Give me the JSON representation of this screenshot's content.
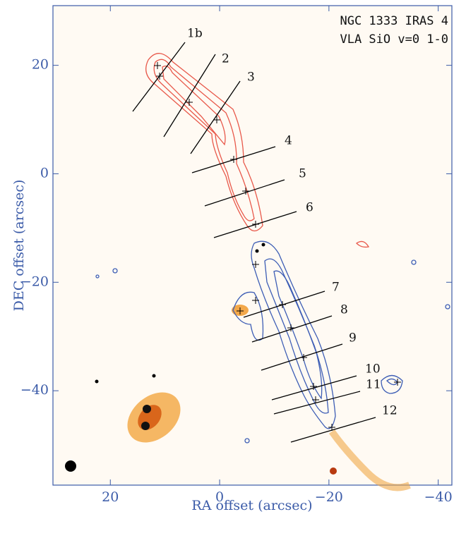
{
  "chart_data": {
    "type": "image",
    "title_lines": [
      "NGC 1333 IRAS 4",
      "VLA SiO v=0 1-0"
    ],
    "xlabel": "RA offset (arcsec)",
    "ylabel": "DEC offset (arcsec)",
    "xlim": [
      30.5,
      -42.5
    ],
    "ylim": [
      -57.4,
      31
    ],
    "xticks": [
      20,
      0,
      {
        "value": -20,
        "label": "−20"
      },
      {
        "value": -40,
        "label": "−40"
      }
    ],
    "yticks": [
      20,
      0,
      {
        "value": -20,
        "label": "−20"
      },
      {
        "value": -40,
        "label": "−40"
      }
    ],
    "cut_labels": [
      "1b",
      "2",
      "3",
      "4",
      "5",
      "6",
      "7",
      "8",
      "9",
      "10",
      "11",
      "12"
    ]
  }
}
